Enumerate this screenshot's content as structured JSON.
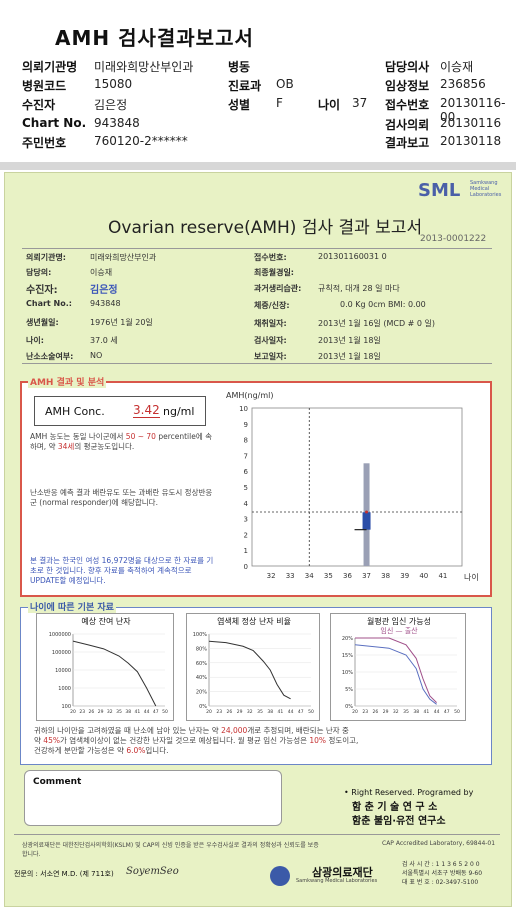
{
  "title": "AMH 검사결과보고서",
  "header": {
    "rows": [
      [
        {
          "k": "의뢰기관명",
          "v": "미래와희망산부인과"
        },
        {
          "k": "병동",
          "v": ""
        },
        {
          "k": "담당의사",
          "v": "이승재"
        }
      ],
      [
        {
          "k": "병원코드",
          "v": "15080"
        },
        {
          "k": "진료과",
          "v": "OB"
        },
        {
          "k": "임상정보",
          "v": "236856"
        }
      ],
      [
        {
          "k": "수진자",
          "v": "김은정"
        },
        {
          "k": "성별",
          "v": "F"
        },
        {
          "k": "접수번호",
          "v": "20130116-00"
        }
      ],
      [
        {
          "k": "Chart No.",
          "v": "943848"
        },
        {
          "k": "",
          "v": ""
        },
        {
          "k": "검사의뢰",
          "v": "20130116"
        }
      ],
      [
        {
          "k": "주민번호",
          "v": "760120-2******"
        },
        {
          "k": "",
          "v": ""
        },
        {
          "k": "결과보고",
          "v": "20130118"
        }
      ]
    ],
    "age_label": "나이",
    "age_value": "37"
  },
  "report": {
    "logo": "SML",
    "logo_sub": "Samkwang Medical Laboratories",
    "title": "Ovarian reserve(AMH) 검사 결과 보고서",
    "id": "2013-0001222",
    "left": [
      {
        "k": "의뢰기관명:",
        "v": "미래와희망산부인과"
      },
      {
        "k": "담당의:",
        "v": "이승재"
      },
      {
        "k": "수진자:",
        "v": "김은정"
      },
      {
        "k": "Chart No.:",
        "v": "943848"
      },
      {
        "k": "생년월일:",
        "v": "1976년 1월 20일"
      },
      {
        "k": "나이:",
        "v": "37.0 세"
      },
      {
        "k": "난소소술여부:",
        "v": "NO"
      }
    ],
    "right": [
      {
        "k": "접수번호:",
        "v": "201301160031 0"
      },
      {
        "k": "최종월경일:",
        "v": ""
      },
      {
        "k": "과거생리습관:",
        "v": "규칙적, 대개  28 일 마다"
      },
      {
        "k": "체중/신장:",
        "v": "0.0 Kg      0cm   BMI:  0.00"
      },
      {
        "k": "채취일자:",
        "v": "2013년 1월 16일   (MCD #  0 일)"
      },
      {
        "k": "검사일자:",
        "v": "2013년 1월 18일"
      },
      {
        "k": "보고일자:",
        "v": "2013년 1월 18일"
      }
    ],
    "amh_section_title": "AMH 결과 및 분석",
    "amh_label": "AMH Conc.",
    "amh_value": "3.42",
    "amh_unit": "ng/ml",
    "amh_text1a": "AMH 농도는 동일 나이군에서",
    "amh_text1b": "50 ~  70",
    "amh_text1c": "percentile에 속하며, 약",
    "amh_text1d": "34세",
    "amh_text1e": "의 평균농도입니다.",
    "amh_text2": "난소반응 예측 결과 배란유도 또는 과배란 유도시 정상반응군 (normal responder)에 해당합니다.",
    "amh_text3": "본 결과는 한국인 여성 16,972명을 대상으로 한 자료를 기초로 한 것입니다. 향후 자료를 축적하여 계속적으로 UPDATE할 예정입니다.",
    "age_section_title": "나이에 따른 기본 자료",
    "mini1_title": "예상 잔여 난자",
    "mini2_title": "염색체 정상 난자 비율",
    "mini3_title": "월평관 임신 가능성",
    "mini3_legend": "임신 — 출산",
    "bottom_text1a": "귀하의 나이만을 고려하였을 때 난소에 남아 있는 난자는 약",
    "bottom_text1b": "24,000",
    "bottom_text1c": "개로 추정되며, 배란되는 난자 중",
    "bottom_text2a": "약",
    "bottom_text2b": "45%",
    "bottom_text2c": "가 염색체이상이 없는 건강한 난자일 것으로 예상됩니다. 월 평균 임신 가능성은",
    "bottom_text2d": "10%",
    "bottom_text2e": "정도이고,",
    "bottom_text3a": "건강하게 분만할 가능성은 약",
    "bottom_text3b": "6.0%",
    "bottom_text3c": "입니다.",
    "comment_label": "Comment",
    "rights": "• Right Reserved. Programed by",
    "lab1": "함 춘 기 술 연 구 소",
    "lab2": "함춘 불임·유전 연구소",
    "cert": "삼광의료재단은 대한진단검사의학회(KSLM) 및 CAP의 신빙 인증을 받은 우수검사실로 결과의 정확성과 신뢰도를 보증합니다.",
    "cap": "CAP Accredited  Laboratory,  69844-01",
    "doctor": "전문의 : 서소연 M.D. (제 711호)",
    "signature": "SoyemSeo",
    "foundation": "삼광의료재단",
    "foundation_sub": "Samkwang Medical Laboratories",
    "contact": [
      "검 사 시 간 : 1 1 3 6 5 2 0 0",
      "서울특별시 서초구 방배동 9-60",
      "대 표 번 호 : 02-3497-5100"
    ]
  },
  "chart_data": [
    {
      "type": "scatter",
      "title": "",
      "ylabel": "AMH(ng/ml)",
      "xlabel": "나이",
      "xlim": [
        31,
        42
      ],
      "ylim": [
        0,
        10
      ],
      "x_ticks": [
        32,
        33,
        34,
        35,
        36,
        37,
        38,
        39,
        40,
        41
      ],
      "y_ticks": [
        0,
        1,
        2,
        3,
        4,
        5,
        6,
        7,
        8,
        9,
        10
      ],
      "reference_lines": {
        "age": 34,
        "amh": 3.42
      },
      "range_bar": {
        "x": 37,
        "y_low": 0,
        "y_high": 6.5,
        "iqr_low": 2.3,
        "iqr_high": 3.4
      },
      "point": {
        "x": 37,
        "y": 3.42
      }
    },
    {
      "type": "line",
      "title": "예상 잔여 난자",
      "x_ticks": [
        20,
        23,
        26,
        29,
        32,
        35,
        38,
        41,
        44,
        47,
        50
      ],
      "y_ticks": [
        "1000000",
        "100000",
        "10000",
        "1000",
        "100"
      ],
      "y_scale": "log",
      "x": [
        20,
        25,
        30,
        35,
        38,
        41,
        44,
        47
      ],
      "values": [
        400000,
        250000,
        150000,
        60000,
        24000,
        8000,
        1000,
        100
      ]
    },
    {
      "type": "line",
      "title": "염색체 정상 난자 비율",
      "x_ticks": [
        20,
        23,
        26,
        29,
        32,
        35,
        38,
        41,
        44,
        47,
        50
      ],
      "y_ticks": [
        "100%",
        "80%",
        "60%",
        "40%",
        "20%",
        "0%"
      ],
      "x": [
        20,
        25,
        30,
        33,
        36,
        38,
        40,
        42,
        44
      ],
      "values": [
        90,
        88,
        83,
        77,
        62,
        50,
        30,
        15,
        10
      ]
    },
    {
      "type": "line",
      "title": "월평관 임신 가능성",
      "x_ticks": [
        20,
        23,
        26,
        29,
        32,
        35,
        38,
        41,
        44,
        47,
        50
      ],
      "y_ticks": [
        "20%",
        "15%",
        "10%",
        "5%",
        "0%"
      ],
      "series": [
        {
          "name": "임신",
          "x": [
            20,
            30,
            35,
            38,
            40,
            42,
            44
          ],
          "values": [
            20,
            20,
            18,
            14,
            8,
            3,
            1
          ]
        },
        {
          "name": "출산",
          "x": [
            20,
            30,
            35,
            38,
            40,
            42,
            44
          ],
          "values": [
            18,
            17,
            15,
            11,
            5,
            2,
            0.5
          ]
        }
      ]
    }
  ]
}
